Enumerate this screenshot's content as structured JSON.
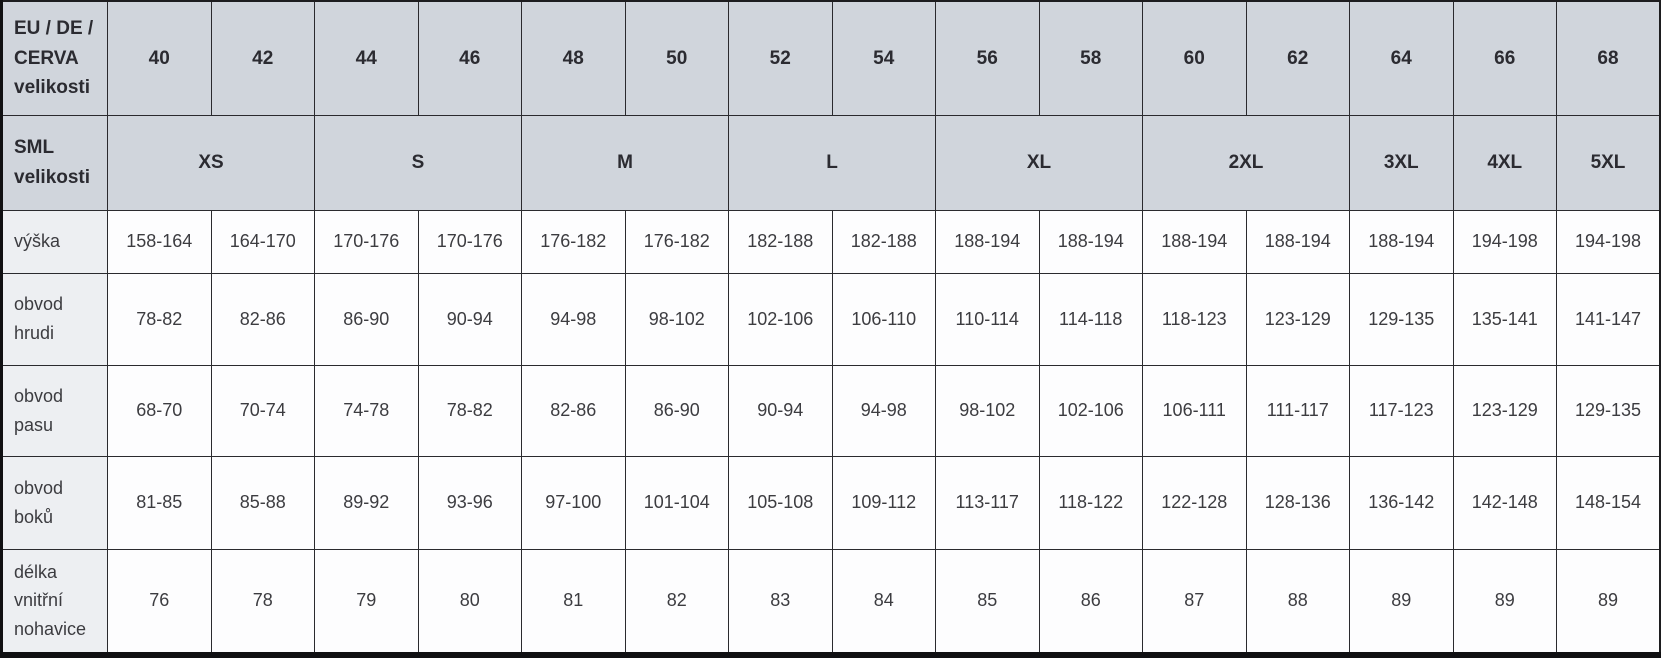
{
  "colors": {
    "header_background": "#d0d5dc",
    "label_column_background": "#edeff2",
    "cell_background": "#fdfdfe",
    "border": "#2a2a2e",
    "outer_border": "#101012",
    "text": "#3c3c40"
  },
  "size_table": {
    "eu_row": {
      "label": "EU / DE / CERVA velikosti",
      "values": [
        "40",
        "42",
        "44",
        "46",
        "48",
        "50",
        "52",
        "54",
        "56",
        "58",
        "60",
        "62",
        "64",
        "66",
        "68"
      ]
    },
    "sml_row": {
      "label": "SML velikosti",
      "groups": [
        {
          "label": "XS",
          "span": 2
        },
        {
          "label": "S",
          "span": 2
        },
        {
          "label": "M",
          "span": 2
        },
        {
          "label": "L",
          "span": 2
        },
        {
          "label": "XL",
          "span": 2
        },
        {
          "label": "2XL",
          "span": 2
        },
        {
          "label": "3XL",
          "span": 1
        },
        {
          "label": "4XL",
          "span": 1
        },
        {
          "label": "5XL",
          "span": 1
        }
      ]
    },
    "rows": [
      {
        "label": "výška",
        "values": [
          "158-164",
          "164-170",
          "170-176",
          "170-176",
          "176-182",
          "176-182",
          "182-188",
          "182-188",
          "188-194",
          "188-194",
          "188-194",
          "188-194",
          "188-194",
          "194-198",
          "194-198"
        ]
      },
      {
        "label": "obvod hrudi",
        "values": [
          "78-82",
          "82-86",
          "86-90",
          "90-94",
          "94-98",
          "98-102",
          "102-106",
          "106-110",
          "110-114",
          "114-118",
          "118-123",
          "123-129",
          "129-135",
          "135-141",
          "141-147"
        ]
      },
      {
        "label": "obvod pasu",
        "values": [
          "68-70",
          "70-74",
          "74-78",
          "78-82",
          "82-86",
          "86-90",
          "90-94",
          "94-98",
          "98-102",
          "102-106",
          "106-111",
          "111-117",
          "117-123",
          "123-129",
          "129-135"
        ]
      },
      {
        "label": "obvod boků",
        "values": [
          "81-85",
          "85-88",
          "89-92",
          "93-96",
          "97-100",
          "101-104",
          "105-108",
          "109-112",
          "113-117",
          "118-122",
          "122-128",
          "128-136",
          "136-142",
          "142-148",
          "148-154"
        ]
      },
      {
        "label": "délka vnitřní nohavice",
        "values": [
          "76",
          "78",
          "79",
          "80",
          "81",
          "82",
          "83",
          "84",
          "85",
          "86",
          "87",
          "88",
          "89",
          "89",
          "89"
        ]
      }
    ]
  }
}
